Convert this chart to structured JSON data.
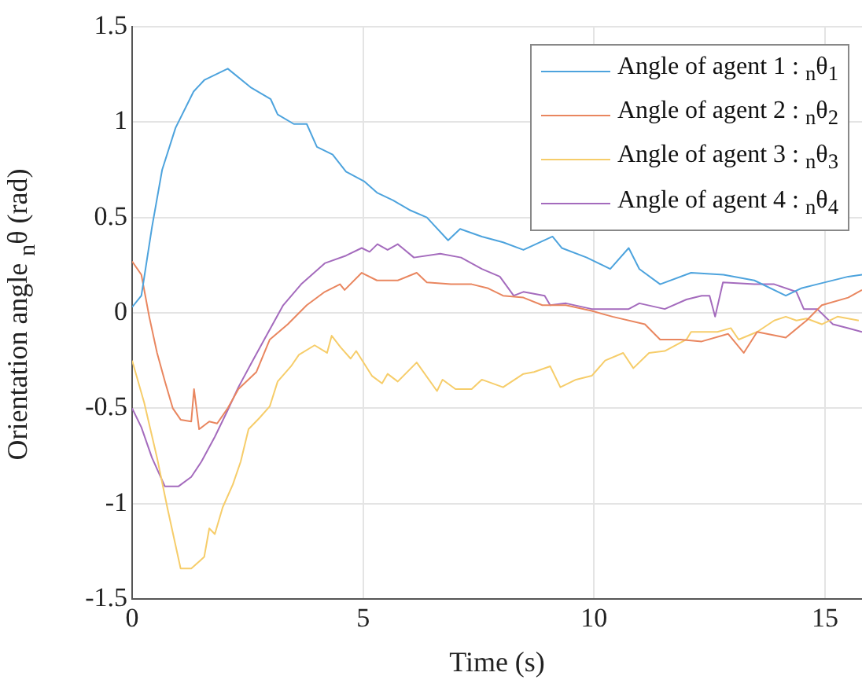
{
  "chart_data": {
    "type": "line",
    "xlabel": "Time (s)",
    "ylabel": "Orientation angle $_{n}$θ (rad)",
    "xlim": [
      0,
      15.8
    ],
    "xticks": [
      0,
      5,
      10,
      15
    ],
    "ylim": [
      -1.5,
      1.5
    ],
    "yticks": [
      -1.5,
      -1,
      -0.5,
      0,
      0.5,
      1,
      1.5
    ],
    "grid": true,
    "legend": "top right",
    "marker": "none",
    "line_style": "solid",
    "series": [
      {
        "name": "Angle of agent 1 : $_{n}$θ$_{1}$",
        "color": "#4da3dd",
        "x": [
          0,
          0.2,
          0.43,
          0.65,
          0.94,
          1.33,
          1.56,
          2.07,
          2.58,
          3.0,
          3.15,
          3.5,
          3.78,
          4.0,
          4.34,
          4.63,
          5.02,
          5.3,
          5.65,
          6.0,
          6.38,
          6.84,
          7.1,
          7.57,
          8.03,
          8.47,
          9.1,
          9.3,
          9.84,
          10.35,
          10.75,
          10.98,
          11.43,
          12.1,
          12.8,
          13.47,
          14.15,
          14.5,
          14.83,
          15.5,
          15.8
        ],
        "values": [
          0.03,
          0.09,
          0.45,
          0.75,
          0.97,
          1.16,
          1.22,
          1.28,
          1.18,
          1.12,
          1.04,
          0.99,
          0.99,
          0.87,
          0.83,
          0.74,
          0.69,
          0.63,
          0.59,
          0.54,
          0.5,
          0.38,
          0.44,
          0.4,
          0.37,
          0.33,
          0.4,
          0.34,
          0.29,
          0.23,
          0.34,
          0.23,
          0.15,
          0.21,
          0.2,
          0.17,
          0.09,
          0.13,
          0.15,
          0.19,
          0.2
        ]
      },
      {
        "name": "Angle of agent 2 : $_{n}$θ$_{2}$",
        "color": "#e9865f",
        "x": [
          0,
          0.2,
          0.37,
          0.54,
          0.71,
          0.88,
          1.05,
          1.28,
          1.34,
          1.45,
          1.67,
          1.84,
          2.07,
          2.3,
          2.69,
          2.98,
          3.37,
          3.78,
          4.17,
          4.5,
          4.6,
          4.97,
          5.3,
          5.75,
          6.16,
          6.38,
          6.9,
          7.35,
          7.69,
          8.03,
          8.47,
          8.88,
          9.39,
          9.95,
          10.4,
          11.1,
          11.43,
          11.87,
          12.33,
          12.9,
          13.24,
          13.53,
          14.15,
          14.6,
          14.93,
          15.5,
          15.8
        ],
        "values": [
          0.27,
          0.2,
          -0.02,
          -0.21,
          -0.36,
          -0.5,
          -0.56,
          -0.57,
          -0.4,
          -0.61,
          -0.57,
          -0.58,
          -0.5,
          -0.4,
          -0.31,
          -0.14,
          -0.06,
          0.04,
          0.11,
          0.15,
          0.12,
          0.21,
          0.17,
          0.17,
          0.21,
          0.16,
          0.15,
          0.15,
          0.13,
          0.09,
          0.08,
          0.04,
          0.04,
          0.01,
          -0.02,
          -0.06,
          -0.14,
          -0.14,
          -0.15,
          -0.11,
          -0.21,
          -0.1,
          -0.13,
          -0.04,
          0.04,
          0.08,
          0.12
        ]
      },
      {
        "name": "Angle of agent 3 : $_{n}$θ$_{3}$",
        "color": "#f6cd6a",
        "x": [
          0,
          0.26,
          0.54,
          0.77,
          1.05,
          1.28,
          1.56,
          1.67,
          1.79,
          1.96,
          2.18,
          2.35,
          2.52,
          2.76,
          2.98,
          3.15,
          3.44,
          3.61,
          3.95,
          4.22,
          4.32,
          4.51,
          4.73,
          4.85,
          5.19,
          5.41,
          5.53,
          5.75,
          6.16,
          6.6,
          6.72,
          7.0,
          7.35,
          7.57,
          8.03,
          8.47,
          8.7,
          9.05,
          9.27,
          9.61,
          9.95,
          10.24,
          10.63,
          10.85,
          11.19,
          11.53,
          12.0,
          12.1,
          12.67,
          12.96,
          13.13,
          13.53,
          13.9,
          14.15,
          14.38,
          14.6,
          14.93,
          15.27,
          15.73
        ],
        "values": [
          -0.25,
          -0.47,
          -0.76,
          -1.03,
          -1.34,
          -1.34,
          -1.28,
          -1.13,
          -1.16,
          -1.02,
          -0.9,
          -0.78,
          -0.61,
          -0.55,
          -0.49,
          -0.36,
          -0.28,
          -0.22,
          -0.17,
          -0.21,
          -0.12,
          -0.18,
          -0.24,
          -0.2,
          -0.33,
          -0.37,
          -0.32,
          -0.36,
          -0.26,
          -0.41,
          -0.35,
          -0.4,
          -0.4,
          -0.35,
          -0.39,
          -0.32,
          -0.31,
          -0.28,
          -0.39,
          -0.35,
          -0.33,
          -0.25,
          -0.21,
          -0.29,
          -0.21,
          -0.2,
          -0.14,
          -0.1,
          -0.1,
          -0.08,
          -0.14,
          -0.1,
          -0.04,
          -0.02,
          -0.04,
          -0.03,
          -0.06,
          -0.02,
          -0.04
        ]
      },
      {
        "name": "Angle of agent 4 : $_{n}$θ$_{4}$",
        "color": "#a46bbd",
        "x": [
          0,
          0.2,
          0.43,
          0.71,
          1.0,
          1.28,
          1.5,
          1.79,
          2.07,
          2.3,
          2.59,
          2.86,
          3.27,
          3.66,
          4.17,
          4.63,
          4.97,
          5.14,
          5.31,
          5.53,
          5.75,
          6.1,
          6.67,
          7.12,
          7.57,
          7.96,
          8.26,
          8.47,
          8.93,
          9.05,
          9.39,
          9.95,
          10.75,
          10.98,
          11.53,
          12.0,
          12.33,
          12.5,
          12.62,
          12.79,
          13.47,
          13.9,
          14.38,
          14.54,
          14.83,
          15.17,
          15.5,
          15.8
        ],
        "values": [
          -0.5,
          -0.6,
          -0.76,
          -0.91,
          -0.91,
          -0.86,
          -0.78,
          -0.65,
          -0.51,
          -0.39,
          -0.26,
          -0.14,
          0.04,
          0.15,
          0.26,
          0.3,
          0.34,
          0.32,
          0.36,
          0.33,
          0.36,
          0.29,
          0.31,
          0.29,
          0.23,
          0.19,
          0.09,
          0.11,
          0.09,
          0.04,
          0.05,
          0.02,
          0.02,
          0.05,
          0.02,
          0.07,
          0.09,
          0.09,
          -0.02,
          0.16,
          0.15,
          0.15,
          0.11,
          0.02,
          0.02,
          -0.06,
          -0.08,
          -0.1
        ]
      }
    ]
  }
}
